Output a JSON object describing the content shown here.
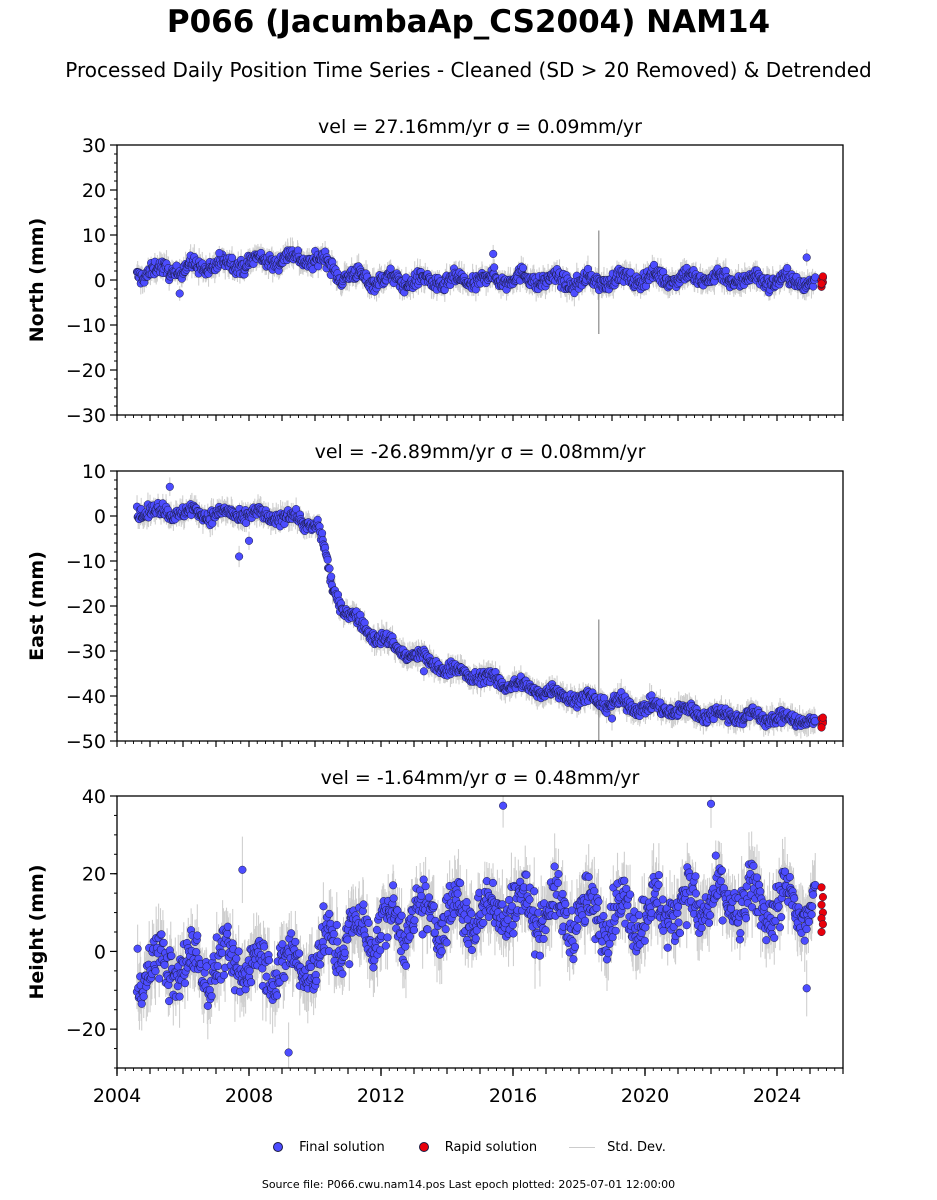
{
  "title": "P066 (JacumbaAp_CS2004) NAM14",
  "subtitle": "Processed Daily Position Time Series - Cleaned (SD > 20 Removed) & Detrended",
  "legend": {
    "final": "Final solution",
    "rapid": "Rapid solution",
    "std": "Std. Dev."
  },
  "footer": "Source file: P066.cwu.nam14.pos  Last epoch plotted: 2025-07-01 12:00:00",
  "colors": {
    "final": "#4c4cff",
    "rapid": "#e8000b",
    "std": "#c0c0c0",
    "edge": "#1a1a40"
  },
  "chart_data": [
    {
      "type": "scatter",
      "panel": "north",
      "title": "vel = 27.16mm/yr   σ = 0.09mm/yr",
      "ylabel": "North (mm)",
      "xlim": [
        2004.0,
        2026.0
      ],
      "ylim": [
        -30,
        30
      ],
      "yticks": [
        -30,
        -20,
        -10,
        0,
        10,
        20,
        30
      ],
      "ytick_labels": [
        "−30",
        "−20",
        "−10",
        "0",
        "10",
        "20",
        "30"
      ],
      "x_range": [
        2004.6,
        2025.25
      ],
      "trend": [
        [
          2004.6,
          1.5
        ],
        [
          2006.0,
          2.5
        ],
        [
          2008.0,
          4.0
        ],
        [
          2009.5,
          5.0
        ],
        [
          2010.3,
          4.0
        ],
        [
          2010.8,
          1.0
        ],
        [
          2012.0,
          0.0
        ],
        [
          2014.0,
          -0.5
        ],
        [
          2016.0,
          0.5
        ],
        [
          2018.0,
          -0.5
        ],
        [
          2020.0,
          0.5
        ],
        [
          2022.0,
          0.5
        ],
        [
          2025.25,
          -0.5
        ]
      ],
      "scatter": 1.6,
      "errbar": 2.0,
      "outliers": [
        [
          2005.9,
          -3.0
        ],
        [
          2015.4,
          5.8
        ],
        [
          2007.1,
          6.0
        ],
        [
          2024.9,
          5.0
        ]
      ],
      "spike": {
        "x": 2018.6,
        "y0": -12,
        "y1": 11
      },
      "rapid": [
        -1.5,
        -0.5,
        0.0,
        0.5,
        -1.0,
        0.8,
        -0.8
      ]
    },
    {
      "type": "scatter",
      "panel": "east",
      "title": "vel = -26.89mm/yr   σ = 0.08mm/yr",
      "ylabel": "East (mm)",
      "xlim": [
        2004.0,
        2026.0
      ],
      "ylim": [
        -50,
        10
      ],
      "yticks": [
        -50,
        -40,
        -30,
        -20,
        -10,
        0,
        10
      ],
      "ytick_labels": [
        "−50",
        "−40",
        "−30",
        "−20",
        "−10",
        "0",
        "10"
      ],
      "x_range": [
        2004.6,
        2025.25
      ],
      "trend": [
        [
          2004.6,
          1.0
        ],
        [
          2006.0,
          0.8
        ],
        [
          2008.0,
          0.2
        ],
        [
          2009.5,
          -0.5
        ],
        [
          2010.1,
          -2.5
        ],
        [
          2010.3,
          -8.0
        ],
        [
          2010.5,
          -15.0
        ],
        [
          2010.8,
          -20.0
        ],
        [
          2011.5,
          -25.0
        ],
        [
          2012.5,
          -29.5
        ],
        [
          2014.0,
          -34.0
        ],
        [
          2016.0,
          -37.5
        ],
        [
          2018.0,
          -40.5
        ],
        [
          2020.0,
          -42.5
        ],
        [
          2022.0,
          -44.0
        ],
        [
          2025.25,
          -45.5
        ]
      ],
      "scatter": 1.4,
      "errbar": 2.0,
      "outliers": [
        [
          2007.7,
          -9.0
        ],
        [
          2008.0,
          -5.5
        ],
        [
          2005.6,
          6.5
        ],
        [
          2013.3,
          -34.5
        ],
        [
          2019.0,
          -45.0
        ]
      ],
      "spike": {
        "x": 2018.6,
        "y0": -50,
        "y1": -23
      },
      "rapid": [
        -46.5,
        -45.5,
        -45.0,
        -46.0,
        -47.0,
        -44.8
      ]
    },
    {
      "type": "scatter",
      "panel": "height",
      "title": "vel = -1.64mm/yr   σ = 0.48mm/yr",
      "ylabel": "Height (mm)",
      "xlim": [
        2004.0,
        2026.0
      ],
      "ylim": [
        -30,
        40
      ],
      "yticks": [
        -20,
        0,
        20,
        40
      ],
      "ytick_labels": [
        "−20",
        "0",
        "20",
        "40"
      ],
      "xticks": [
        2004,
        2008,
        2012,
        2016,
        2020,
        2024
      ],
      "xtick_labels": [
        "2004",
        "2008",
        "2012",
        "2016",
        "2020",
        "2024"
      ],
      "x_range": [
        2004.6,
        2025.25
      ],
      "trend": [
        [
          2004.6,
          -4.0
        ],
        [
          2006.0,
          -4.0
        ],
        [
          2008.0,
          -3.0
        ],
        [
          2010.0,
          -4.0
        ],
        [
          2010.4,
          2.0
        ],
        [
          2011.5,
          5.0
        ],
        [
          2013.0,
          8.0
        ],
        [
          2015.0,
          10.0
        ],
        [
          2016.0,
          12.0
        ],
        [
          2018.0,
          9.0
        ],
        [
          2020.0,
          10.0
        ],
        [
          2022.0,
          13.0
        ],
        [
          2025.25,
          11.0
        ]
      ],
      "scatter": 6.5,
      "errbar": 6.0,
      "outliers": [
        [
          2015.7,
          37.5
        ],
        [
          2022.0,
          38.0
        ],
        [
          2007.8,
          21.0
        ],
        [
          2024.9,
          -9.5
        ],
        [
          2009.2,
          -26.0
        ]
      ],
      "spike": null,
      "rapid": [
        16.5,
        14.0,
        12.0,
        10.0,
        8.5,
        7.0,
        5.0
      ]
    }
  ]
}
